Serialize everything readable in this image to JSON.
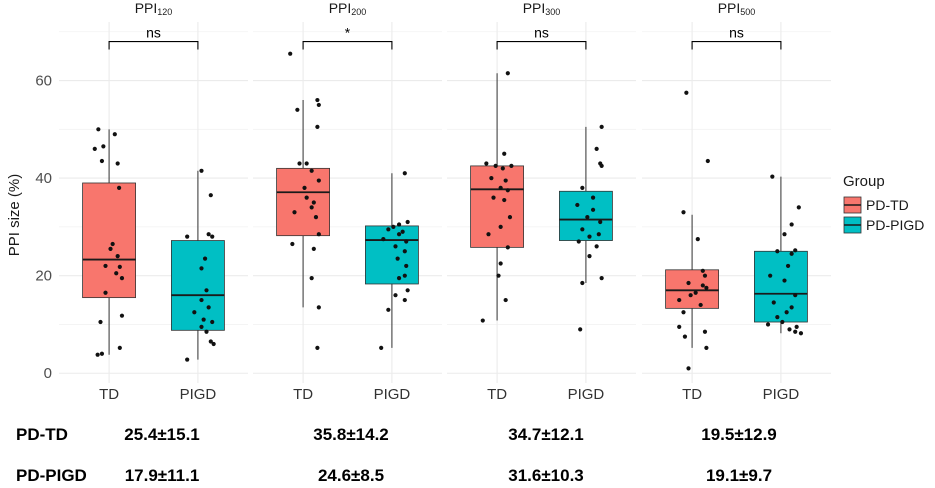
{
  "chart_data": {
    "type": "box",
    "ylabel": "PPI size (%)",
    "ylim": [
      -2,
      72
    ],
    "yticks": [
      0,
      20,
      40,
      60
    ],
    "legend": {
      "title": "Group",
      "position": "right",
      "entries": [
        {
          "label": "PD-TD",
          "color": "#F8766D"
        },
        {
          "label": "PD-PIGD",
          "color": "#00BFC4"
        }
      ]
    },
    "panels": [
      {
        "title_main": "PPI",
        "title_sub": "120",
        "significance": "ns",
        "boxes": [
          {
            "category": "TD",
            "group": "PD-TD",
            "q1": 15.5,
            "median": 23.3,
            "q3": 39.0,
            "whisker_low": 3.8,
            "whisker_high": 50.0,
            "points": [
              [
                -0.15,
                50.0
              ],
              [
                0.08,
                49.0
              ],
              [
                -0.2,
                46.0
              ],
              [
                -0.08,
                46.5
              ],
              [
                -0.1,
                43.5
              ],
              [
                0.12,
                43.0
              ],
              [
                0.14,
                38.0
              ],
              [
                0.05,
                26.5
              ],
              [
                0.02,
                25.5
              ],
              [
                0.12,
                24.0
              ],
              [
                -0.05,
                22.0
              ],
              [
                0.15,
                21.8
              ],
              [
                0.1,
                20.5
              ],
              [
                0.18,
                19.5
              ],
              [
                -0.05,
                16.5
              ],
              [
                0.18,
                11.8
              ],
              [
                -0.12,
                10.5
              ],
              [
                -0.1,
                4.0
              ],
              [
                -0.16,
                3.8
              ],
              [
                0.15,
                5.2
              ]
            ]
          },
          {
            "category": "PIGD",
            "group": "PD-PIGD",
            "q1": 8.8,
            "median": 16.0,
            "q3": 27.2,
            "whisker_low": 2.8,
            "whisker_high": 41.5,
            "points": [
              [
                0.05,
                41.5
              ],
              [
                0.18,
                36.5
              ],
              [
                0.15,
                28.5
              ],
              [
                0.2,
                28.0
              ],
              [
                0.1,
                23.5
              ],
              [
                0.05,
                21.5
              ],
              [
                -0.15,
                28.0
              ],
              [
                0.12,
                17.0
              ],
              [
                0.05,
                15.0
              ],
              [
                0.15,
                13.5
              ],
              [
                -0.05,
                12.5
              ],
              [
                0.08,
                11.0
              ],
              [
                0.2,
                10.5
              ],
              [
                0.05,
                9.5
              ],
              [
                0.12,
                8.5
              ],
              [
                0.18,
                6.5
              ],
              [
                0.22,
                6.0
              ],
              [
                -0.15,
                2.8
              ]
            ]
          }
        ]
      },
      {
        "title_main": "PPI",
        "title_sub": "200",
        "significance": "*",
        "boxes": [
          {
            "category": "TD",
            "group": "PD-TD",
            "q1": 28.2,
            "median": 37.1,
            "q3": 42.0,
            "whisker_low": 13.5,
            "whisker_high": 56.0,
            "points": [
              [
                -0.18,
                65.5
              ],
              [
                0.2,
                56.0
              ],
              [
                0.22,
                55.0
              ],
              [
                -0.08,
                54.0
              ],
              [
                0.2,
                50.5
              ],
              [
                -0.05,
                43.0
              ],
              [
                0.05,
                43.0
              ],
              [
                0.12,
                41.5
              ],
              [
                0.22,
                39.5
              ],
              [
                0.02,
                38.0
              ],
              [
                0.05,
                36.0
              ],
              [
                0.15,
                35.0
              ],
              [
                0.12,
                34.0
              ],
              [
                -0.12,
                33.0
              ],
              [
                0.18,
                32.0
              ],
              [
                0.22,
                28.5
              ],
              [
                -0.15,
                26.5
              ],
              [
                0.15,
                25.5
              ],
              [
                0.12,
                19.5
              ],
              [
                0.22,
                13.5
              ],
              [
                0.2,
                5.2
              ]
            ]
          },
          {
            "category": "PIGD",
            "group": "PD-PIGD",
            "q1": 18.3,
            "median": 27.3,
            "q3": 30.2,
            "whisker_low": 5.2,
            "whisker_high": 41.0,
            "points": [
              [
                0.18,
                41.0
              ],
              [
                0.1,
                30.5
              ],
              [
                0.22,
                31.0
              ],
              [
                0.02,
                30.0
              ],
              [
                -0.05,
                29.5
              ],
              [
                0.15,
                29.0
              ],
              [
                0.1,
                28.5
              ],
              [
                0.2,
                27.0
              ],
              [
                -0.12,
                27.5
              ],
              [
                0.05,
                26.0
              ],
              [
                0.18,
                25.0
              ],
              [
                0.08,
                23.5
              ],
              [
                0.2,
                22.0
              ],
              [
                0.18,
                20.0
              ],
              [
                0.1,
                19.5
              ],
              [
                0.22,
                17.0
              ],
              [
                0.05,
                16.0
              ],
              [
                0.18,
                15.0
              ],
              [
                -0.05,
                13.0
              ],
              [
                -0.15,
                5.2
              ]
            ]
          }
        ]
      },
      {
        "title_main": "PPI",
        "title_sub": "300",
        "significance": "ns",
        "boxes": [
          {
            "category": "TD",
            "group": "PD-TD",
            "q1": 25.8,
            "median": 37.7,
            "q3": 42.5,
            "whisker_low": 10.8,
            "whisker_high": 61.5,
            "points": [
              [
                0.15,
                61.5
              ],
              [
                0.1,
                45.0
              ],
              [
                -0.15,
                43.0
              ],
              [
                -0.02,
                42.5
              ],
              [
                0.08,
                42.0
              ],
              [
                0.2,
                42.5
              ],
              [
                -0.08,
                40.0
              ],
              [
                0.12,
                39.5
              ],
              [
                0.05,
                38.0
              ],
              [
                0.15,
                37.5
              ],
              [
                -0.05,
                36.0
              ],
              [
                0.1,
                35.5
              ],
              [
                0.18,
                32.0
              ],
              [
                0.05,
                30.0
              ],
              [
                -0.12,
                28.5
              ],
              [
                0.15,
                25.8
              ],
              [
                0.05,
                22.5
              ],
              [
                0.02,
                20.0
              ],
              [
                0.12,
                15.0
              ],
              [
                -0.2,
                10.8
              ]
            ]
          },
          {
            "category": "PIGD",
            "group": "PD-PIGD",
            "q1": 27.2,
            "median": 31.5,
            "q3": 37.3,
            "whisker_low": 18.5,
            "whisker_high": 50.5,
            "points": [
              [
                0.22,
                50.5
              ],
              [
                0.15,
                46.0
              ],
              [
                0.2,
                43.0
              ],
              [
                0.22,
                42.5
              ],
              [
                -0.05,
                38.0
              ],
              [
                0.1,
                36.0
              ],
              [
                -0.12,
                34.5
              ],
              [
                0.1,
                33.5
              ],
              [
                0.02,
                32.0
              ],
              [
                0.2,
                31.0
              ],
              [
                -0.05,
                29.5
              ],
              [
                0.18,
                28.5
              ],
              [
                0.05,
                28.0
              ],
              [
                -0.1,
                27.0
              ],
              [
                0.15,
                26.0
              ],
              [
                0.05,
                24.0
              ],
              [
                0.22,
                19.5
              ],
              [
                -0.05,
                18.5
              ],
              [
                -0.08,
                9.0
              ]
            ]
          }
        ]
      },
      {
        "title_main": "PPI",
        "title_sub": "500",
        "significance": "ns",
        "boxes": [
          {
            "category": "TD",
            "group": "PD-TD",
            "q1": 13.3,
            "median": 17.0,
            "q3": 21.2,
            "whisker_low": 5.2,
            "whisker_high": 32.5,
            "points": [
              [
                -0.08,
                57.5
              ],
              [
                0.22,
                43.5
              ],
              [
                -0.12,
                33.0
              ],
              [
                0.08,
                27.5
              ],
              [
                0.15,
                21.0
              ],
              [
                0.18,
                20.0
              ],
              [
                -0.05,
                18.5
              ],
              [
                0.15,
                18.0
              ],
              [
                0.2,
                17.5
              ],
              [
                0.05,
                16.5
              ],
              [
                -0.02,
                16.0
              ],
              [
                -0.18,
                15.0
              ],
              [
                0.12,
                14.0
              ],
              [
                -0.12,
                12.5
              ],
              [
                -0.18,
                9.5
              ],
              [
                0.18,
                8.5
              ],
              [
                -0.1,
                7.5
              ],
              [
                0.2,
                5.2
              ],
              [
                -0.05,
                1.0
              ]
            ]
          },
          {
            "category": "PIGD",
            "group": "PD-PIGD",
            "q1": 10.5,
            "median": 16.3,
            "q3": 25.0,
            "whisker_low": 8.2,
            "whisker_high": 40.3,
            "points": [
              [
                -0.12,
                40.3
              ],
              [
                0.25,
                34.0
              ],
              [
                0.15,
                30.5
              ],
              [
                0.05,
                28.5
              ],
              [
                -0.05,
                25.0
              ],
              [
                0.2,
                25.2
              ],
              [
                0.15,
                24.5
              ],
              [
                0.1,
                22.0
              ],
              [
                -0.15,
                20.0
              ],
              [
                0.05,
                19.0
              ],
              [
                0.2,
                16.0
              ],
              [
                -0.1,
                14.5
              ],
              [
                0.15,
                13.5
              ],
              [
                0.08,
                12.5
              ],
              [
                -0.05,
                11.5
              ],
              [
                0.02,
                10.5
              ],
              [
                -0.18,
                10.0
              ],
              [
                0.22,
                9.5
              ],
              [
                0.12,
                9.0
              ],
              [
                0.2,
                8.5
              ],
              [
                0.28,
                8.2
              ]
            ]
          }
        ]
      }
    ]
  },
  "summary_table": {
    "rows": [
      {
        "label": "PD-TD",
        "values": [
          "25.4±15.1",
          "35.8±14.2",
          "34.7±12.1",
          "19.5±12.9"
        ]
      },
      {
        "label": "PD-PIGD",
        "values": [
          "17.9±11.1",
          "24.6±8.5",
          "31.6±10.3",
          "19.1±9.7"
        ]
      }
    ]
  }
}
